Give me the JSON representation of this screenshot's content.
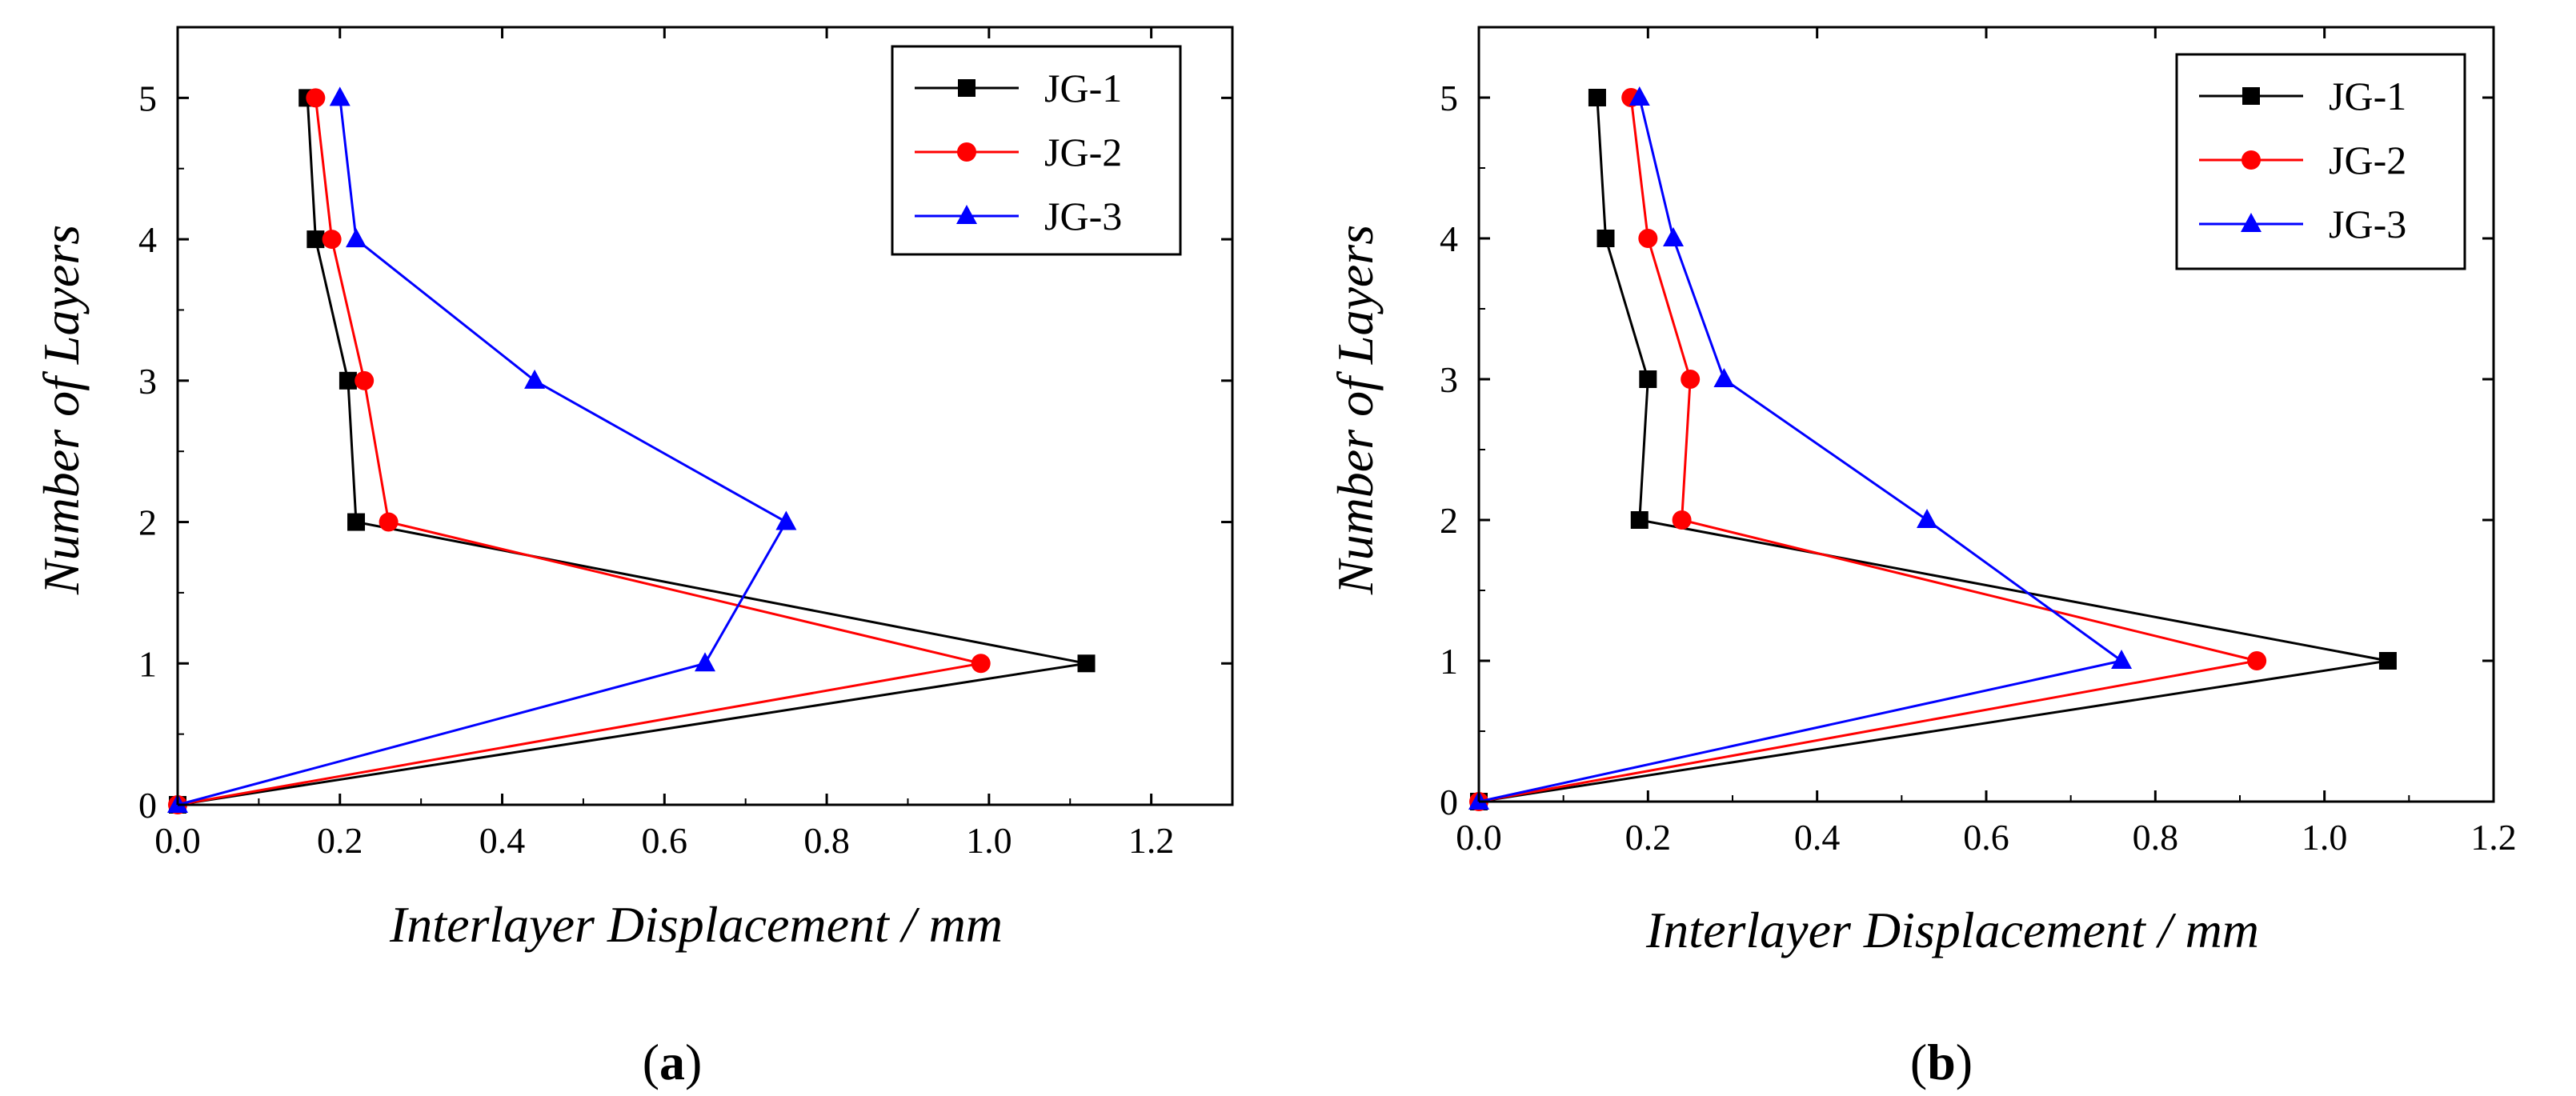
{
  "chart_data": [
    {
      "type": "line",
      "panel_label": "a",
      "title": "",
      "xlabel": "Interlayer Displacement / mm",
      "ylabel": "Number of Layers",
      "xlim": [
        0.0,
        1.3
      ],
      "ylim": [
        0,
        5.5
      ],
      "xticks": [
        "0.0",
        "0.2",
        "0.4",
        "0.6",
        "0.8",
        "1.0",
        "1.2"
      ],
      "yticks": [
        "0",
        "1",
        "2",
        "3",
        "4",
        "5"
      ],
      "legend_position": "top-right",
      "series": [
        {
          "name": "JG-1",
          "color": "#000000",
          "marker": "square",
          "points": [
            [
              0.0,
              0
            ],
            [
              1.12,
              1
            ],
            [
              0.22,
              2
            ],
            [
              0.21,
              3
            ],
            [
              0.17,
              4
            ],
            [
              0.16,
              5
            ]
          ]
        },
        {
          "name": "JG-2",
          "color": "#ff0000",
          "marker": "circle",
          "points": [
            [
              0.0,
              0
            ],
            [
              0.99,
              1
            ],
            [
              0.26,
              2
            ],
            [
              0.23,
              3
            ],
            [
              0.19,
              4
            ],
            [
              0.17,
              5
            ]
          ]
        },
        {
          "name": "JG-3",
          "color": "#0000ff",
          "marker": "triangle",
          "points": [
            [
              0.0,
              0
            ],
            [
              0.65,
              1
            ],
            [
              0.75,
              2
            ],
            [
              0.44,
              3
            ],
            [
              0.22,
              4
            ],
            [
              0.2,
              5
            ]
          ]
        }
      ]
    },
    {
      "type": "line",
      "panel_label": "b",
      "title": "",
      "xlabel": "Interlayer Displacement / mm",
      "ylabel": "Number of Layers",
      "xlim": [
        0.0,
        1.2
      ],
      "ylim": [
        0,
        5.5
      ],
      "xticks": [
        "0.0",
        "0.2",
        "0.4",
        "0.6",
        "0.8",
        "1.0",
        "1.2"
      ],
      "yticks": [
        "0",
        "1",
        "2",
        "3",
        "4",
        "5"
      ],
      "legend_position": "top-right",
      "series": [
        {
          "name": "JG-1",
          "color": "#000000",
          "marker": "square",
          "points": [
            [
              0.0,
              0
            ],
            [
              1.075,
              1
            ],
            [
              0.19,
              2
            ],
            [
              0.2,
              3
            ],
            [
              0.15,
              4
            ],
            [
              0.14,
              5
            ]
          ]
        },
        {
          "name": "JG-2",
          "color": "#ff0000",
          "marker": "circle",
          "points": [
            [
              0.0,
              0
            ],
            [
              0.92,
              1
            ],
            [
              0.24,
              2
            ],
            [
              0.25,
              3
            ],
            [
              0.2,
              4
            ],
            [
              0.18,
              5
            ]
          ]
        },
        {
          "name": "JG-3",
          "color": "#0000ff",
          "marker": "triangle",
          "points": [
            [
              0.0,
              0
            ],
            [
              0.76,
              1
            ],
            [
              0.53,
              2
            ],
            [
              0.29,
              3
            ],
            [
              0.23,
              4
            ],
            [
              0.19,
              5
            ]
          ]
        }
      ]
    }
  ]
}
